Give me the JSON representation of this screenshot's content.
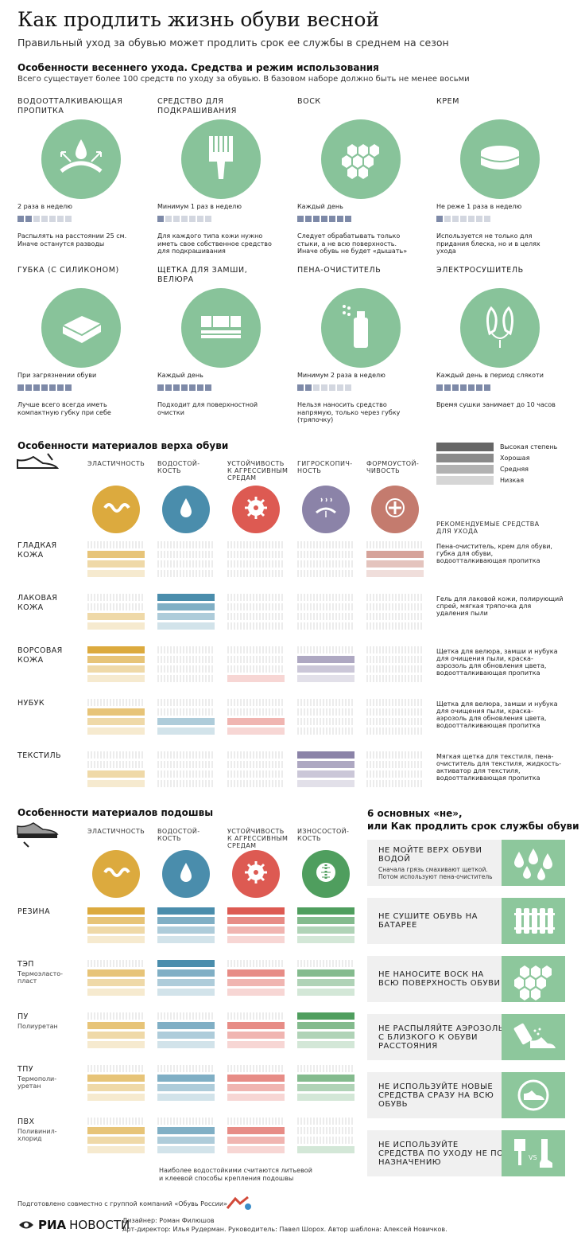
{
  "title": "Как продлить жизнь обуви весной",
  "subtitle": "Правильный уход за обувью может продлить срок ее службы в среднем на сезон",
  "care": {
    "heading": "Особенности весеннего ухода. Средства и режим использования",
    "intro": "Всего существует более 100 средств по уходу за обувью. В базовом наборе должно быть не менее восьми",
    "tools": [
      {
        "name": "Водоотталкивающая пропитка",
        "icon": "water-repellent-icon",
        "freq": "2 раза в неделю",
        "level": 2,
        "desc": "Распылять на расстоянии 25 см. Иначе останутся разводы"
      },
      {
        "name": "Средство для подкрашивания",
        "icon": "paintbrush-icon",
        "freq": "Минимум 1 раз в неделю",
        "level": 1,
        "desc": "Для каждого типа кожи нужно иметь свое собственное средство для подкрашивания"
      },
      {
        "name": "Воск",
        "icon": "wax-honeycomb-icon",
        "freq": "Каждый день",
        "level": 7,
        "desc": "Следует обрабатывать только стыки, а не всю поверхность. Иначе обувь не будет «дышать»"
      },
      {
        "name": "Крем",
        "icon": "cream-tin-icon",
        "freq": "Не реже 1 раза в неделю",
        "level": 1,
        "desc": "Используется не только для придания блеска, но и в целях ухода"
      },
      {
        "name": "Губка (с силиконом)",
        "icon": "sponge-icon",
        "freq": "При загрязнении обуви",
        "level": 7,
        "desc": "Лучше всего всегда иметь компактную губку при себе"
      },
      {
        "name": "Щетка для замши, велюра",
        "icon": "suede-brush-icon",
        "freq": "Каждый день",
        "level": 7,
        "desc": "Подходит для поверхностной очистки"
      },
      {
        "name": "Пена-очиститель",
        "icon": "spray-can-icon",
        "freq": "Минимум 2 раза в неделю",
        "level": 2,
        "desc": "Нельзя наносить средство напрямую, только через губку (тряпочку)"
      },
      {
        "name": "Электросушитель",
        "icon": "electric-dryer-icon",
        "freq": "Каждый день в период слякоти",
        "level": 7,
        "desc": "Время сушки занимает до 10 часов"
      }
    ]
  },
  "upper": {
    "heading": "Особенности материалов верха обуви",
    "columns": [
      "Эластичность",
      "Водостой-кость",
      "Устойчивость к агрессивным средам",
      "Гигроскопич-ность",
      "Формоустой-чивость"
    ],
    "column_icons": [
      "elasticity-wave-icon",
      "water-drop-icon",
      "saw-blade-icon",
      "moisture-icon",
      "form-stability-icon"
    ],
    "column_colors": [
      "#dcaa3e",
      "#4a8dac",
      "#dd5a52",
      "#8b83a8",
      "#c47b6e"
    ],
    "legend": [
      "Высокая степень",
      "Хорошая",
      "Средняя",
      "Низкая"
    ],
    "rec_heading": "Рекомендуемые средства для ухода",
    "materials": [
      {
        "name": "Гладкая кожа",
        "levels": [
          3,
          0,
          0,
          0,
          3
        ],
        "rec": "Пена-очиститель, крем для обуви, губка для обуви, водоотталкивающая пропитка"
      },
      {
        "name": "Лаковая кожа",
        "levels": [
          2,
          4,
          0,
          0,
          0
        ],
        "rec": "Гель для лаковой кожи, полирующий спрей, мягкая тряпочка для удаления пыли"
      },
      {
        "name": "Ворсовая кожа",
        "levels": [
          4,
          0,
          1,
          3,
          0
        ],
        "rec": "Щетка для велюра, замши и нубука для очищения пыли, краска-аэрозоль для обновления цвета, водоотталкивающая пропитка"
      },
      {
        "name": "Нубук",
        "levels": [
          3,
          2,
          2,
          0,
          0
        ],
        "rec": "Щетка для велюра, замши и нубука для очищения пыли, краска-аэрозоль для обновления цвета, водоотталкивающая пропитка"
      },
      {
        "name": "Текстиль",
        "levels": [
          2,
          0,
          0,
          4,
          0
        ],
        "rec": "Мягкая щетка для текстиля, пена-очиститель для текстиля, жидкость-активатор для текстиля, водоотталкивающая пропитка"
      }
    ]
  },
  "sole": {
    "heading": "Особенности материалов подошвы",
    "columns": [
      "Эластичность",
      "Водостой-кость",
      "Устойчивость к агрессивным средам",
      "Износостой-кость"
    ],
    "column_icons": [
      "elasticity-wave-icon",
      "water-drop-icon",
      "saw-blade-icon",
      "wear-resistance-icon"
    ],
    "column_colors": [
      "#dcaa3e",
      "#4a8dac",
      "#dd5a52",
      "#4f9e5e"
    ],
    "materials": [
      {
        "name": "Резина",
        "sub": "",
        "levels": [
          4,
          4,
          4,
          4
        ]
      },
      {
        "name": "ТЭП",
        "sub": "Термоэласто-пласт",
        "levels": [
          3,
          4,
          3,
          3
        ]
      },
      {
        "name": "ПУ",
        "sub": "Полиуретан",
        "levels": [
          3,
          3,
          3,
          4
        ]
      },
      {
        "name": "ТПУ",
        "sub": "Термополи-уретан",
        "levels": [
          3,
          3,
          3,
          3
        ]
      },
      {
        "name": "ПВХ",
        "sub": "Поливинил-хлорид",
        "levels": [
          3,
          3,
          3,
          1
        ]
      }
    ],
    "footnote": "Наиболее водостойкими считаются литьевой и клеевой способы крепления подошвы"
  },
  "nots": {
    "heading_1": "6 основных «не»,",
    "heading_2": "или Как продлить срок службы обуви",
    "items": [
      {
        "big": "Не мойте верх обуви водой",
        "small": "Сначала грязь смахивают щеткой. Потом используют пена-очиститель",
        "icon": "water-drops-icon"
      },
      {
        "big": "Не сушите обувь на батарее",
        "small": "",
        "icon": "radiator-icon"
      },
      {
        "big": "Не наносите воск на всю поверхность обуви",
        "small": "",
        "icon": "wax-honeycomb-icon"
      },
      {
        "big": "Не распыляйте аэрозоль с близкого к обуви расстояния",
        "small": "",
        "icon": "aerosol-shoe-icon"
      },
      {
        "big": "Не используйте новые средства сразу на всю обувь",
        "small": "",
        "icon": "shoe-circle-icon"
      },
      {
        "big": "Не используйте средства по уходу не по назначению",
        "small": "",
        "icon": "brush-vs-boot-icon"
      }
    ]
  },
  "footer": {
    "partner": "Подготовлено совместно с группой компаний «Обувь России»",
    "logo_1": "РИА",
    "logo_2": "НОВОСТИ",
    "designer": "Дизайнер: Роман Филюшов",
    "credits": "Арт-директор: Илья Рудерман. Руководитель: Павел Шорох. Автор шаблона: Алексей Новичков."
  },
  "colors": {
    "green": "#88c39a",
    "freq_on": "#7e8aa8",
    "freq_off": "#d3d7e0"
  }
}
